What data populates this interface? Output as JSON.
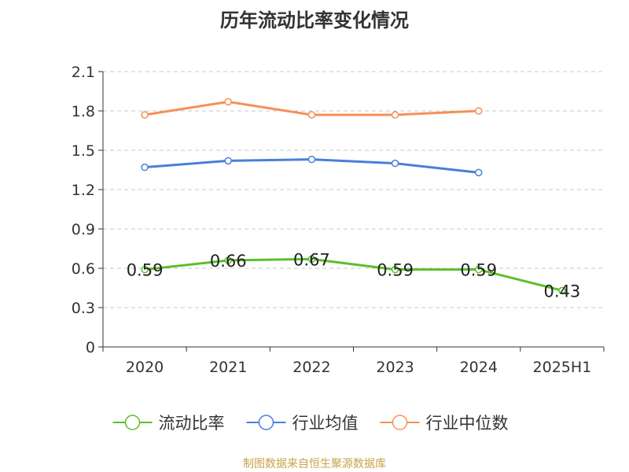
{
  "chart_data": {
    "type": "line",
    "title": "历年流动比率变化情况",
    "categories": [
      "2020",
      "2021",
      "2022",
      "2023",
      "2024",
      "2025H1"
    ],
    "y_ticks": [
      "0",
      "0.3",
      "0.6",
      "0.9",
      "1.2",
      "1.5",
      "1.8",
      "2.1"
    ],
    "ylim": [
      0,
      2.1
    ],
    "grid": true,
    "legend_position": "bottom",
    "series": [
      {
        "name": "流动比率",
        "color": "#5bbf2a",
        "values": [
          0.59,
          0.66,
          0.67,
          0.59,
          0.59,
          0.43
        ],
        "labels": [
          "0.59",
          "0.66",
          "0.67",
          "0.59",
          "0.59",
          "0.43"
        ]
      },
      {
        "name": "行业均值",
        "color": "#4a7fd8",
        "values": [
          1.37,
          1.42,
          1.43,
          1.4,
          1.33,
          null
        ]
      },
      {
        "name": "行业中位数",
        "color": "#f59157",
        "values": [
          1.77,
          1.87,
          1.77,
          1.77,
          1.8,
          null
        ]
      }
    ]
  },
  "source": "制图数据来自恒生聚源数据库"
}
